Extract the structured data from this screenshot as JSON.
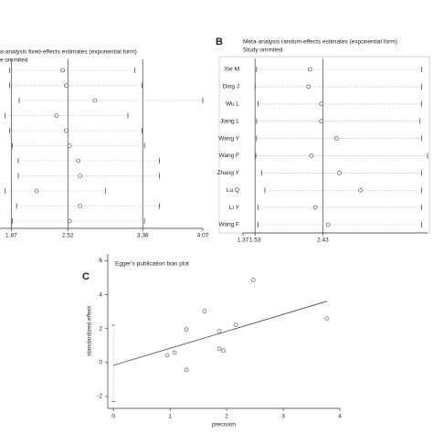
{
  "chart_data": [
    {
      "type": "forest",
      "title": "a-analysis fixed-effects estimates (exponential form)",
      "subtitle": "e ommited",
      "estimates": [
        2.46,
        2.5,
        2.83,
        2.39,
        2.5,
        2.54,
        2.64,
        2.66,
        2.16,
        2.66,
        2.54
      ],
      "lower": [
        1.85,
        1.85,
        1.96,
        1.8,
        1.85,
        1.88,
        1.95,
        1.95,
        1.8,
        1.93,
        1.88
      ],
      "upper": [
        3.29,
        3.37,
        4.07,
        3.21,
        3.37,
        3.4,
        3.57,
        3.57,
        2.95,
        3.57,
        3.4
      ],
      "xlim": [
        1.74,
        4.07
      ],
      "xticks": [
        1.87,
        2.52,
        3.38,
        4.07
      ],
      "ref_lines": [
        1.87,
        2.52,
        3.38
      ]
    },
    {
      "type": "forest",
      "label": "B",
      "title": "Meta-analysis random-effects estimates (exponential form)",
      "subtitle": "Study ommited",
      "categories": [
        "Xie M",
        "Ding J",
        "Wu L",
        "Jiang L",
        "Wang Y",
        "Wang F",
        "Zhang Y",
        "Lu Q",
        "Li Y",
        "Wang F"
      ],
      "estimates": [
        2.26,
        2.24,
        2.41,
        2.41,
        2.61,
        2.28,
        2.65,
        2.93,
        2.33,
        2.5
      ],
      "lower": [
        1.55,
        1.53,
        1.57,
        1.55,
        1.55,
        1.54,
        1.62,
        1.66,
        1.57,
        1.57
      ],
      "upper": [
        3.74,
        3.74,
        3.74,
        3.72,
        3.74,
        3.82,
        3.74,
        3.74,
        3.74,
        3.74
      ],
      "xlim": [
        1.37,
        3.82
      ],
      "xticks": [
        1.37,
        1.53,
        2.43
      ],
      "ref_lines": [
        1.53,
        2.43
      ]
    },
    {
      "type": "scatter",
      "label": "C",
      "title": "Egger's publication bias plot",
      "x": [
        0.95,
        1.08,
        1.29,
        1.29,
        1.61,
        1.87,
        1.87,
        1.94,
        2.16,
        2.47,
        3.77
      ],
      "values": [
        0.43,
        0.59,
        1.95,
        -0.43,
        3.03,
        1.84,
        0.81,
        0.7,
        2.22,
        4.86,
        2.59
      ],
      "intercept": -0.16,
      "slope": 1.0,
      "intercept_ci": [
        -2.3,
        2.2
      ],
      "xlim": [
        -0.1,
        4.0
      ],
      "ylim": [
        -2.7,
        6.4
      ],
      "xticks": [
        0,
        1,
        2,
        3,
        4
      ],
      "yticks": [
        -2,
        0,
        2,
        4,
        6
      ],
      "xlabel": "precision",
      "ylabel": "standardized effect"
    }
  ]
}
